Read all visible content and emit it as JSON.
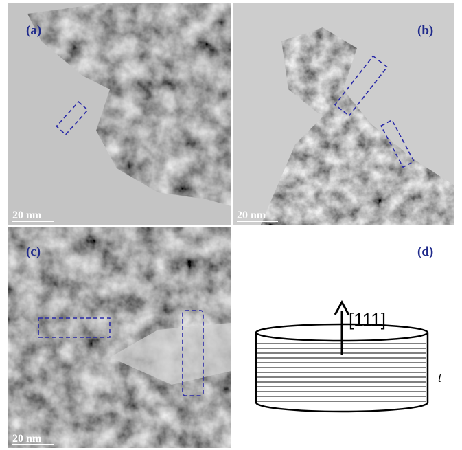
{
  "panels": [
    {
      "label": "(a)",
      "scale_bar": "20 nm"
    },
    {
      "label": "(b)",
      "scale_bar": "20 nm"
    },
    {
      "label": "(c)",
      "scale_bar": "20 nm"
    },
    {
      "label": "(d)"
    }
  ],
  "diagram": {
    "direction": "[111]",
    "thickness": "t"
  }
}
